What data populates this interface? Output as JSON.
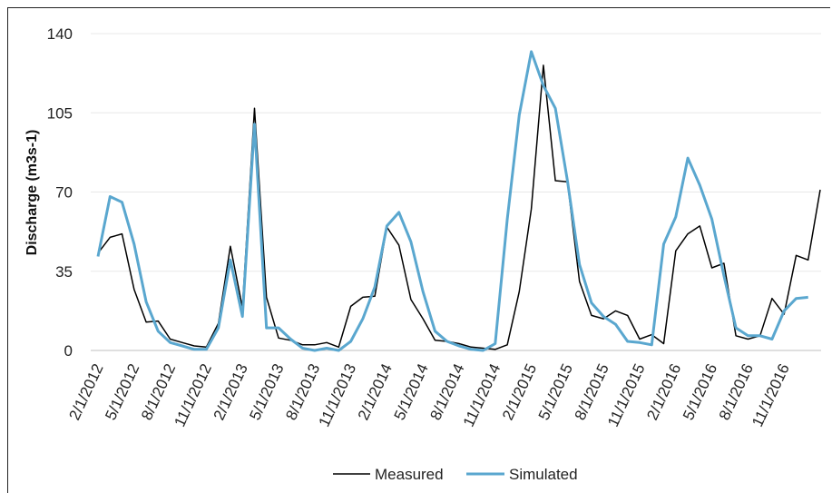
{
  "chart_data": {
    "type": "line",
    "title": "",
    "xlabel": "",
    "ylabel": "Discharge (m3s-1)",
    "ylim": [
      0,
      140
    ],
    "yticks": [
      0,
      35,
      70,
      105,
      140
    ],
    "grid": "horizontal",
    "legend": "bottom",
    "x_start": "2/1/2012",
    "x_tick_labels": [
      "2/1/2012",
      "5/1/2012",
      "8/1/2012",
      "11/1/2012",
      "2/1/2013",
      "5/1/2013",
      "8/1/2013",
      "11/1/2013",
      "2/1/2014",
      "5/1/2014",
      "8/1/2014",
      "11/1/2014",
      "2/1/2015",
      "5/1/2015",
      "8/1/2015",
      "11/1/2015",
      "2/1/2016",
      "5/1/2016",
      "8/1/2016",
      "11/1/2016"
    ],
    "series": [
      {
        "name": "Measured",
        "color": "#000000",
        "values": [
          43,
          50,
          51.5,
          27,
          12.5,
          13,
          5,
          3.5,
          2,
          1.5,
          12,
          46,
          19,
          107,
          23.5,
          5.5,
          4.5,
          2.5,
          2.5,
          3.5,
          1.5,
          19.5,
          23.5,
          24,
          54.5,
          46.5,
          22.5,
          14,
          4.5,
          4,
          3,
          1.5,
          1,
          0.5,
          2.5,
          26,
          62.5,
          126,
          75,
          74.5,
          30.5,
          15.5,
          14,
          17.5,
          15.5,
          5,
          7,
          3,
          44,
          51.5,
          55,
          36.5,
          38.5,
          6.5,
          5,
          6.5,
          23,
          16,
          42,
          40,
          71
        ]
      },
      {
        "name": "Simulated",
        "color": "#5AA7CF",
        "values": [
          41.5,
          68,
          65.5,
          47,
          21.5,
          8.5,
          3.5,
          2,
          0.5,
          0.5,
          10,
          40,
          15,
          100,
          10,
          10,
          5,
          1,
          0,
          1,
          0,
          4,
          14,
          28,
          55,
          61,
          48,
          26,
          8.5,
          4,
          2,
          0.5,
          0,
          3,
          58,
          104,
          132,
          117,
          107,
          75,
          38,
          21,
          15,
          11.5,
          4,
          3.5,
          2.5,
          47,
          59,
          85,
          73,
          58,
          33,
          10,
          6.5,
          6.5,
          5,
          17.5,
          23,
          23.5
        ]
      }
    ]
  }
}
